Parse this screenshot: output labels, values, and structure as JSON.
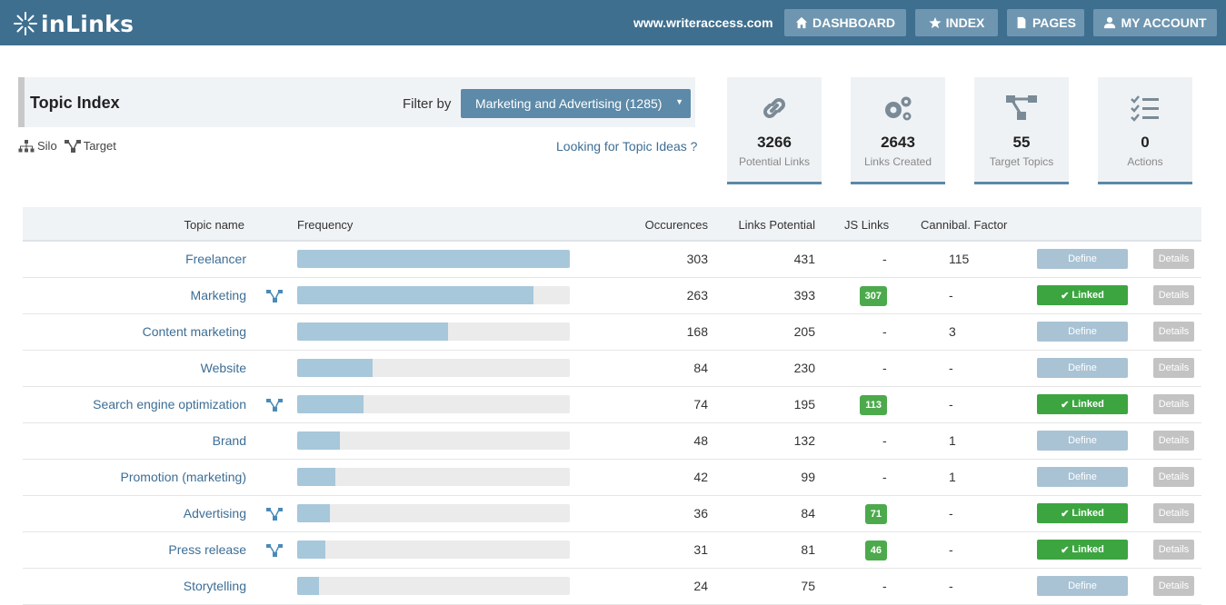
{
  "header": {
    "logo": "inLinks",
    "site": "www.writeraccess.com",
    "nav": [
      {
        "label": "DASHBOARD",
        "icon": "home-icon"
      },
      {
        "label": "INDEX",
        "icon": "star-icon"
      },
      {
        "label": "PAGES",
        "icon": "page-icon"
      },
      {
        "label": "MY ACCOUNT",
        "icon": "user-icon"
      }
    ]
  },
  "topic_index": {
    "title": "Topic Index",
    "filter_label": "Filter by",
    "filter_value": "Marketing and Advertising (1285)",
    "legend_silo": "Silo",
    "legend_target": "Target",
    "topic_ideas_link": "Looking for Topic Ideas ?"
  },
  "stats": [
    {
      "value": "3266",
      "label": "Potential Links",
      "icon": "link-icon"
    },
    {
      "value": "2643",
      "label": "Links Created",
      "icon": "gears-icon"
    },
    {
      "value": "55",
      "label": "Target Topics",
      "icon": "target-icon"
    },
    {
      "value": "0",
      "label": "Actions",
      "icon": "checklist-icon"
    }
  ],
  "table": {
    "columns": [
      "Topic name",
      "Frequency",
      "Occurences",
      "Links Potential",
      "JS Links",
      "Cannibal. Factor"
    ],
    "define_label": "Define",
    "linked_label": "Linked",
    "details_label": "Details",
    "rows": [
      {
        "name": "Freelancer",
        "target": false,
        "freq": 1.0,
        "occ": "303",
        "lp": "431",
        "js": "-",
        "cf": "115",
        "linked": false
      },
      {
        "name": "Marketing",
        "target": true,
        "freq": 0.868,
        "occ": "263",
        "lp": "393",
        "js": "307",
        "cf": "-",
        "linked": true
      },
      {
        "name": "Content marketing",
        "target": false,
        "freq": 0.554,
        "occ": "168",
        "lp": "205",
        "js": "-",
        "cf": "3",
        "linked": false
      },
      {
        "name": "Website",
        "target": false,
        "freq": 0.277,
        "occ": "84",
        "lp": "230",
        "js": "-",
        "cf": "-",
        "linked": false
      },
      {
        "name": "Search engine optimization",
        "target": true,
        "freq": 0.244,
        "occ": "74",
        "lp": "195",
        "js": "113",
        "cf": "-",
        "linked": true
      },
      {
        "name": "Brand",
        "target": false,
        "freq": 0.158,
        "occ": "48",
        "lp": "132",
        "js": "-",
        "cf": "1",
        "linked": false
      },
      {
        "name": "Promotion (marketing)",
        "target": false,
        "freq": 0.139,
        "occ": "42",
        "lp": "99",
        "js": "-",
        "cf": "1",
        "linked": false
      },
      {
        "name": "Advertising",
        "target": true,
        "freq": 0.119,
        "occ": "36",
        "lp": "84",
        "js": "71",
        "cf": "-",
        "linked": true
      },
      {
        "name": "Press release",
        "target": true,
        "freq": 0.102,
        "occ": "31",
        "lp": "81",
        "js": "46",
        "cf": "-",
        "linked": true
      },
      {
        "name": "Storytelling",
        "target": false,
        "freq": 0.079,
        "occ": "24",
        "lp": "75",
        "js": "-",
        "cf": "-",
        "linked": false
      }
    ]
  }
}
